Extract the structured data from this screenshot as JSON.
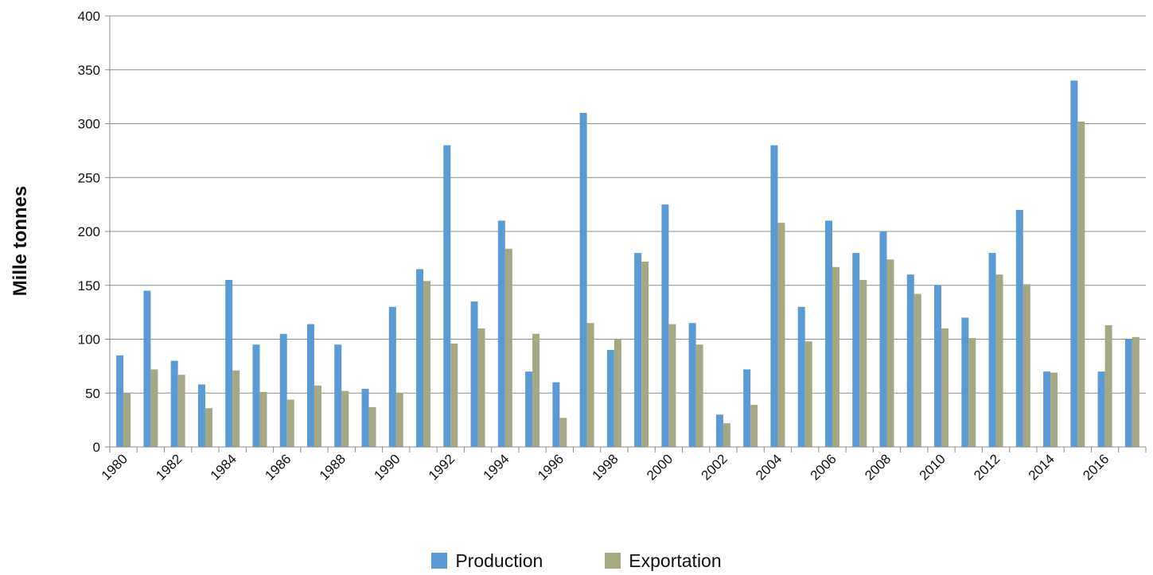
{
  "chart_data": {
    "type": "bar",
    "ylabel": "Mille tonnes",
    "ylim": [
      0,
      400
    ],
    "yticks": [
      0,
      50,
      100,
      150,
      200,
      250,
      300,
      350,
      400
    ],
    "grid": true,
    "legend_position": "bottom",
    "categories": [
      1980,
      1981,
      1982,
      1983,
      1984,
      1985,
      1986,
      1987,
      1988,
      1989,
      1990,
      1991,
      1992,
      1993,
      1994,
      1995,
      1996,
      1997,
      1998,
      1999,
      2000,
      2001,
      2002,
      2003,
      2004,
      2005,
      2006,
      2007,
      2008,
      2009,
      2010,
      2011,
      2012,
      2013,
      2014,
      2015,
      2016,
      2017
    ],
    "category_labels": [
      "1980",
      "",
      "1982",
      "",
      "1984",
      "",
      "1986",
      "",
      "1988",
      "",
      "1990",
      "",
      "1992",
      "",
      "1994",
      "",
      "1996",
      "",
      "1998",
      "",
      "2000",
      "",
      "2002",
      "",
      "2004",
      "",
      "2006",
      "",
      "2008",
      "",
      "2010",
      "",
      "2012",
      "",
      "2014",
      "",
      "2016",
      ""
    ],
    "series": [
      {
        "name": "Production",
        "color": "#5b9bd5",
        "values": [
          85,
          145,
          80,
          58,
          155,
          95,
          105,
          114,
          95,
          54,
          130,
          165,
          280,
          135,
          210,
          70,
          60,
          310,
          90,
          180,
          225,
          115,
          30,
          72,
          280,
          130,
          210,
          180,
          200,
          160,
          150,
          120,
          180,
          220,
          70,
          340,
          70,
          100
        ]
      },
      {
        "name": "Exportation",
        "color": "#a5a883",
        "values": [
          50,
          72,
          67,
          36,
          71,
          51,
          44,
          57,
          52,
          37,
          50,
          154,
          96,
          110,
          184,
          105,
          27,
          115,
          100,
          172,
          114,
          95,
          22,
          39,
          208,
          98,
          167,
          155,
          174,
          142,
          110,
          101,
          160,
          151,
          69,
          302,
          113,
          102
        ]
      }
    ]
  }
}
